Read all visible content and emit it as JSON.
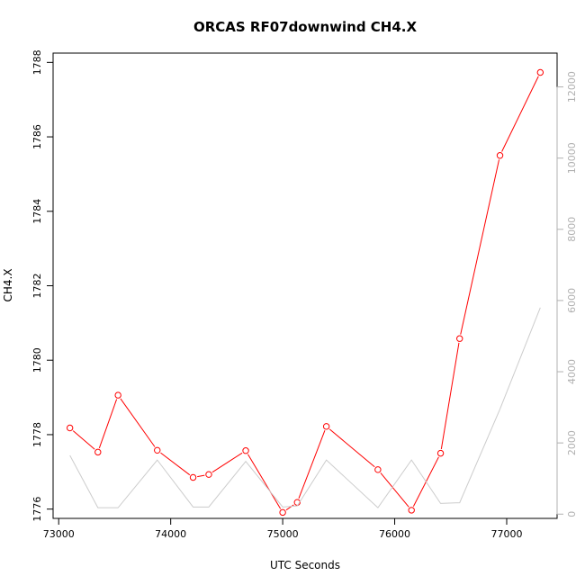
{
  "chart_data": {
    "type": "line",
    "title": "ORCAS RF07downwind CH4.X",
    "xlabel": "UTC Seconds",
    "ylabel": "CH4.X",
    "xlim": [
      72950,
      77450
    ],
    "ylim": [
      1775.75,
      1788.25
    ],
    "y2lim": [
      -120,
      12950
    ],
    "x_ticks": [
      73000,
      74000,
      75000,
      76000,
      77000
    ],
    "y_ticks": [
      1776,
      1778,
      1780,
      1782,
      1784,
      1786,
      1788
    ],
    "y2_ticks": [
      0,
      2000,
      4000,
      6000,
      8000,
      10000,
      12000
    ],
    "grid": false,
    "series": [
      {
        "color": "#ff0000",
        "axis": "left",
        "markers": true,
        "x": [
          73100,
          73350,
          73530,
          73880,
          74200,
          74340,
          74670,
          75000,
          75130,
          75390,
          75850,
          76150,
          76410,
          76580,
          76940,
          77300
        ],
        "y": [
          1778.18,
          1777.53,
          1779.06,
          1777.58,
          1776.85,
          1776.93,
          1777.57,
          1775.91,
          1776.18,
          1778.22,
          1777.06,
          1775.97,
          1777.5,
          1780.58,
          1785.5,
          1787.73
        ]
      },
      {
        "color": "#cccccc",
        "axis": "right",
        "markers": false,
        "x": [
          73100,
          73350,
          73530,
          73880,
          74200,
          74340,
          74670,
          75000,
          75130,
          75390,
          75850,
          76150,
          76410,
          76580,
          76940,
          77300
        ],
        "y": [
          1650,
          180,
          180,
          1520,
          200,
          200,
          1480,
          200,
          230,
          1520,
          180,
          1520,
          300,
          320,
          2950,
          5800
        ]
      }
    ]
  }
}
